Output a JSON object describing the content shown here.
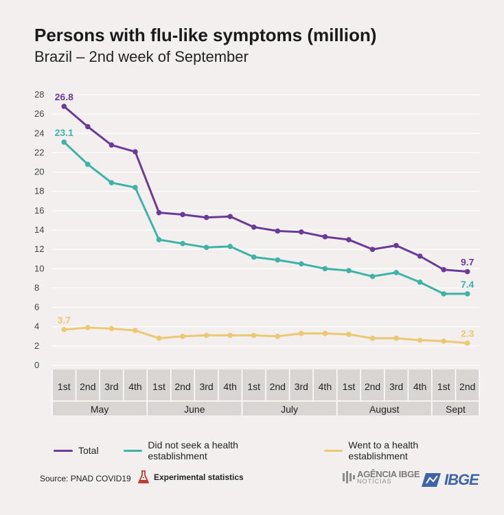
{
  "header": {
    "title": "Persons with flu-like symptoms (million)",
    "subtitle": "Brazil – 2nd week of September"
  },
  "chart_data": {
    "type": "line",
    "y_ticks": [
      0,
      2,
      4,
      6,
      8,
      10,
      12,
      14,
      16,
      18,
      20,
      22,
      24,
      26,
      28
    ],
    "ylim": [
      0,
      28
    ],
    "categories": [
      "1st",
      "2nd",
      "3rd",
      "4th",
      "1st",
      "2nd",
      "3rd",
      "4th",
      "1st",
      "2nd",
      "3rd",
      "4th",
      "1st",
      "2nd",
      "3rd",
      "4th",
      "1st",
      "2nd"
    ],
    "month_groups": [
      {
        "label": "May",
        "start": 0,
        "end": 3
      },
      {
        "label": "June",
        "start": 4,
        "end": 7
      },
      {
        "label": "July",
        "start": 8,
        "end": 11
      },
      {
        "label": "August",
        "start": 12,
        "end": 15
      },
      {
        "label": "Sept",
        "start": 16,
        "end": 17
      }
    ],
    "grid": true,
    "legend_position": "bottom",
    "series": [
      {
        "name": "Total",
        "color": "#6b3a99",
        "values": [
          26.8,
          24.7,
          22.8,
          22.1,
          15.8,
          15.6,
          15.3,
          15.4,
          14.3,
          13.9,
          13.8,
          13.3,
          13.0,
          12.0,
          12.4,
          11.3,
          9.9,
          9.7
        ],
        "labels": [
          {
            "index": 0,
            "text": "26.8"
          },
          {
            "index": 17,
            "text": "9.7"
          }
        ]
      },
      {
        "name": "Did not seek a health establishment",
        "color": "#3db3a6",
        "values": [
          23.1,
          20.8,
          18.9,
          18.4,
          13.0,
          12.6,
          12.2,
          12.3,
          11.2,
          10.9,
          10.5,
          10.0,
          9.8,
          9.2,
          9.6,
          8.6,
          7.4,
          7.4
        ],
        "labels": [
          {
            "index": 0,
            "text": "23.1"
          },
          {
            "index": 17,
            "text": "7.4"
          }
        ]
      },
      {
        "name": "Went to a health establishment",
        "color": "#ecc873",
        "values": [
          3.7,
          3.9,
          3.8,
          3.6,
          2.8,
          3.0,
          3.1,
          3.1,
          3.1,
          3.0,
          3.3,
          3.3,
          3.2,
          2.8,
          2.8,
          2.6,
          2.5,
          2.3
        ],
        "labels": [
          {
            "index": 0,
            "text": "3.7"
          },
          {
            "index": 17,
            "text": "2.3"
          }
        ]
      }
    ]
  },
  "footer": {
    "source": "Source: PNAD COVID19",
    "experimental": "Experimental statistics",
    "agencia_main": "AGÊNCIA IBGE",
    "agencia_sub": "NOTÍCIAS",
    "ibge_logo": "IBGE"
  },
  "icons": {
    "flask": "flask-icon",
    "agencia": "agencia-ibge-logo",
    "ibge": "ibge-logo"
  },
  "colors": {
    "background": "#f2efee",
    "grid": "#ffffff",
    "axis_band": "#d9d5d3"
  }
}
